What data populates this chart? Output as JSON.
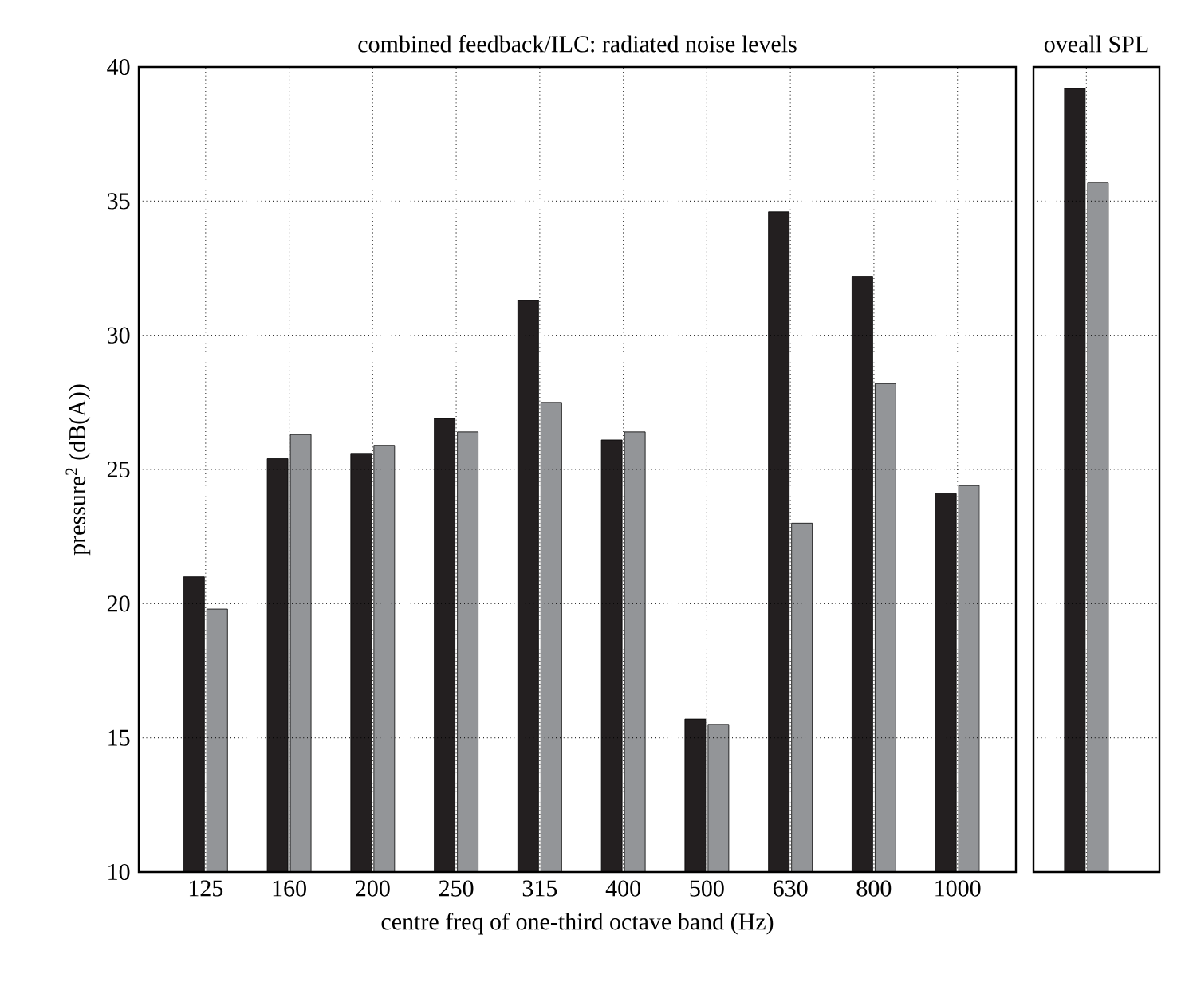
{
  "chart_data": [
    {
      "type": "bar",
      "title": "combined feedback/ILC: radiated noise levels",
      "xlabel": "centre freq of one-third octave band (Hz)",
      "ylabel": "pressure$^{2}$ (dB(A))",
      "categories": [
        "125",
        "160",
        "200",
        "250",
        "315",
        "400",
        "500",
        "630",
        "800",
        "1000"
      ],
      "series": [
        {
          "color": "#231f20",
          "values": [
            21.0,
            25.4,
            25.6,
            26.9,
            31.3,
            26.1,
            15.7,
            34.6,
            32.2,
            24.1
          ]
        },
        {
          "color": "#939598",
          "values": [
            19.8,
            26.3,
            25.9,
            26.4,
            27.5,
            26.4,
            15.5,
            23.0,
            28.2,
            24.4
          ]
        }
      ],
      "ylim": [
        10,
        40
      ],
      "yticks": [
        10,
        15,
        20,
        25,
        30,
        35,
        40
      ],
      "grid": true
    },
    {
      "type": "bar",
      "title": "oveall SPL",
      "categories": [
        null
      ],
      "series": [
        {
          "color": "#231f20",
          "values": [
            39.2
          ]
        },
        {
          "color": "#939598",
          "values": [
            35.7
          ]
        }
      ],
      "ylim": [
        10,
        40
      ],
      "yticks": [
        10,
        15,
        20,
        25,
        30,
        35,
        40
      ],
      "grid": true,
      "tick_labels": false
    }
  ]
}
